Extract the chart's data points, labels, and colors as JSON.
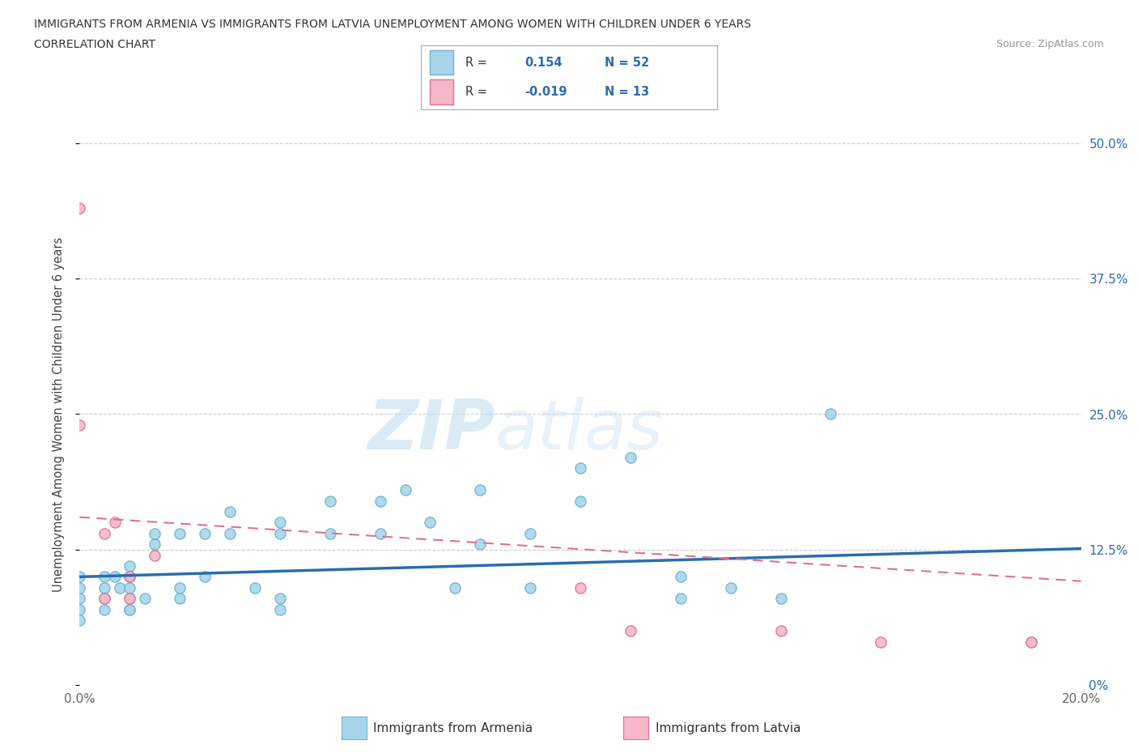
{
  "title_line1": "IMMIGRANTS FROM ARMENIA VS IMMIGRANTS FROM LATVIA UNEMPLOYMENT AMONG WOMEN WITH CHILDREN UNDER 6 YEARS",
  "title_line2": "CORRELATION CHART",
  "source_text": "Source: ZipAtlas.com",
  "ylabel": "Unemployment Among Women with Children Under 6 years",
  "xlim": [
    0.0,
    0.2
  ],
  "ylim": [
    0.0,
    0.5
  ],
  "xticks": [
    0.0,
    0.05,
    0.1,
    0.15,
    0.2
  ],
  "xtick_labels": [
    "0.0%",
    "",
    "",
    "",
    "20.0%"
  ],
  "ytick_labels_right": [
    "0%",
    "12.5%",
    "25.0%",
    "37.5%",
    "50.0%"
  ],
  "yticks": [
    0.0,
    0.125,
    0.25,
    0.375,
    0.5
  ],
  "armenia_color": "#a8d5ea",
  "armenia_edge": "#6cb3d4",
  "latvia_color": "#f5b8c8",
  "latvia_edge": "#e07090",
  "armenia_line_color": "#2b6cb0",
  "latvia_line_color": "#e07090",
  "R_armenia": 0.154,
  "N_armenia": 52,
  "R_latvia": -0.019,
  "N_latvia": 13,
  "watermark_zip": "ZIP",
  "watermark_atlas": "atlas",
  "background_color": "#ffffff",
  "grid_color": "#cccccc",
  "armenia_scatter_x": [
    0.0,
    0.0,
    0.0,
    0.0,
    0.0,
    0.005,
    0.005,
    0.005,
    0.005,
    0.007,
    0.008,
    0.01,
    0.01,
    0.01,
    0.01,
    0.01,
    0.01,
    0.013,
    0.015,
    0.015,
    0.02,
    0.02,
    0.02,
    0.025,
    0.025,
    0.03,
    0.03,
    0.035,
    0.04,
    0.04,
    0.04,
    0.04,
    0.05,
    0.05,
    0.06,
    0.06,
    0.065,
    0.07,
    0.075,
    0.08,
    0.08,
    0.09,
    0.09,
    0.1,
    0.1,
    0.11,
    0.12,
    0.12,
    0.13,
    0.14,
    0.15,
    0.19
  ],
  "armenia_scatter_y": [
    0.06,
    0.07,
    0.08,
    0.09,
    0.1,
    0.07,
    0.08,
    0.09,
    0.1,
    0.1,
    0.09,
    0.07,
    0.08,
    0.09,
    0.1,
    0.11,
    0.07,
    0.08,
    0.13,
    0.14,
    0.08,
    0.14,
    0.09,
    0.1,
    0.14,
    0.14,
    0.16,
    0.09,
    0.07,
    0.08,
    0.14,
    0.15,
    0.14,
    0.17,
    0.14,
    0.17,
    0.18,
    0.15,
    0.09,
    0.13,
    0.18,
    0.14,
    0.09,
    0.17,
    0.2,
    0.21,
    0.1,
    0.08,
    0.09,
    0.08,
    0.25,
    0.04
  ],
  "latvia_scatter_x": [
    0.0,
    0.0,
    0.005,
    0.005,
    0.007,
    0.01,
    0.01,
    0.015,
    0.1,
    0.11,
    0.14,
    0.16,
    0.19
  ],
  "latvia_scatter_y": [
    0.44,
    0.24,
    0.14,
    0.08,
    0.15,
    0.1,
    0.08,
    0.12,
    0.09,
    0.05,
    0.05,
    0.04,
    0.04
  ]
}
